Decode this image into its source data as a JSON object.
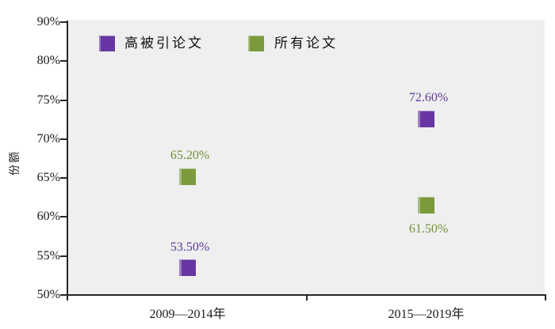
{
  "chart_data": {
    "type": "scatter",
    "title": "",
    "ylabel": "份额",
    "categories": [
      "2009—2014年",
      "2015—2019年"
    ],
    "y_tick_labels": [
      "90%",
      "80%",
      "75%",
      "70%",
      "65%",
      "60%",
      "55%",
      "50%"
    ],
    "y_scale": {
      "bottom_value": 50,
      "percent_per_interval": 5
    },
    "ylim": [
      50,
      90
    ],
    "grid": false,
    "legend_position": "top-inside",
    "plot_bg_color": "#eeefee",
    "axis_color": "#262626",
    "series": [
      {
        "name": "高被引论文",
        "color": "#6836a2",
        "label_color": "#5f3a96",
        "points": [
          {
            "category": "2009—2014年",
            "value": 53.5,
            "label": "53.50%",
            "label_position": "above"
          },
          {
            "category": "2015—2019年",
            "value": 72.6,
            "label": "72.60%",
            "label_position": "above"
          }
        ]
      },
      {
        "name": "所有论文",
        "color": "#7a9a3c",
        "label_color": "#71903a",
        "points": [
          {
            "category": "2009—2014年",
            "value": 65.2,
            "label": "65.20%",
            "label_position": "above"
          },
          {
            "category": "2015—2019年",
            "value": 61.5,
            "label": "61.50%",
            "label_position": "below"
          }
        ]
      }
    ]
  }
}
